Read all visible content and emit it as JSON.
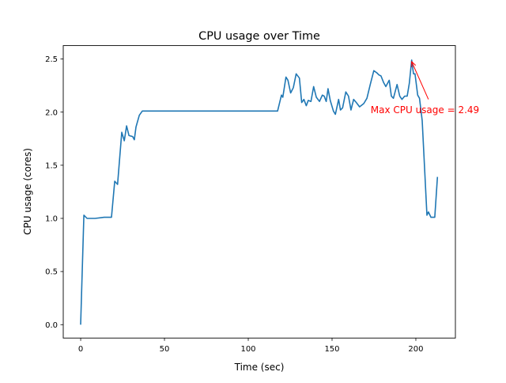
{
  "chart_data": {
    "type": "line",
    "title": "CPU usage over Time",
    "xlabel": "Time (sec)",
    "ylabel": "CPU usage (cores)",
    "xlim": [
      -10.4,
      223.6
    ],
    "ylim": [
      -0.126,
      2.626
    ],
    "xticks": [
      0,
      50,
      100,
      150,
      200
    ],
    "xtick_labels": [
      "0",
      "50",
      "100",
      "150",
      "200"
    ],
    "yticks": [
      0,
      0.5,
      1.0,
      1.5,
      2.0,
      2.5
    ],
    "ytick_labels": [
      "0.0",
      "0.5",
      "1.0",
      "1.5",
      "2.0",
      "2.5"
    ],
    "grid": false,
    "series": [
      {
        "name": "CPU usage",
        "color": "#1f77b4",
        "x": [
          0,
          1.9,
          3.8,
          8.5,
          14,
          18.4,
          20.3,
          22,
          24.5,
          26,
          27.4,
          28.8,
          31,
          32,
          33,
          35,
          36.8,
          117.5,
          119.8,
          120.6,
          122.5,
          123.7,
          125.3,
          126.9,
          128.6,
          130.5,
          131.9,
          133.2,
          134.6,
          135.8,
          137.4,
          139,
          140.6,
          142.5,
          144.2,
          145.3,
          146.5,
          147.6,
          148.9,
          150.8,
          152,
          153.9,
          155,
          156.3,
          158.2,
          159.8,
          161.3,
          162.9,
          164.5,
          166.4,
          168.9,
          170.8,
          172.8,
          174.9,
          176.7,
          178,
          179.2,
          180.7,
          182.1,
          184.1,
          185.4,
          186.6,
          188.8,
          190.4,
          191.7,
          193.3,
          194.8,
          196.1,
          197.5,
          198.6,
          199.5,
          201.1,
          202.2,
          203.8,
          206.6,
          207.5,
          209,
          211.3,
          212.9
        ],
        "y": [
          0,
          1.03,
          1.0,
          1.0,
          1.01,
          1.01,
          1.35,
          1.32,
          1.81,
          1.73,
          1.87,
          1.78,
          1.77,
          1.74,
          1.86,
          1.97,
          2.01,
          2.01,
          2.16,
          2.14,
          2.33,
          2.3,
          2.18,
          2.23,
          2.36,
          2.32,
          2.09,
          2.12,
          2.06,
          2.11,
          2.1,
          2.24,
          2.14,
          2.1,
          2.16,
          2.15,
          2.1,
          2.22,
          2.11,
          2.01,
          1.98,
          2.12,
          2.02,
          2.04,
          2.19,
          2.15,
          2.02,
          2.12,
          2.09,
          2.05,
          2.08,
          2.13,
          2.26,
          2.39,
          2.37,
          2.35,
          2.34,
          2.28,
          2.24,
          2.3,
          2.15,
          2.13,
          2.26,
          2.15,
          2.12,
          2.15,
          2.15,
          2.27,
          2.49,
          2.36,
          2.36,
          2.16,
          2.13,
          1.92,
          1.03,
          1.06,
          1.01,
          1.01,
          1.39
        ]
      }
    ],
    "annotation": {
      "text": "Max CPU usage = 2.49",
      "color": "#ff0000",
      "point": [
        197.5,
        2.49
      ],
      "text_pos": [
        173,
        2.02
      ],
      "arrow_tail": [
        207.5,
        2.12
      ]
    }
  }
}
